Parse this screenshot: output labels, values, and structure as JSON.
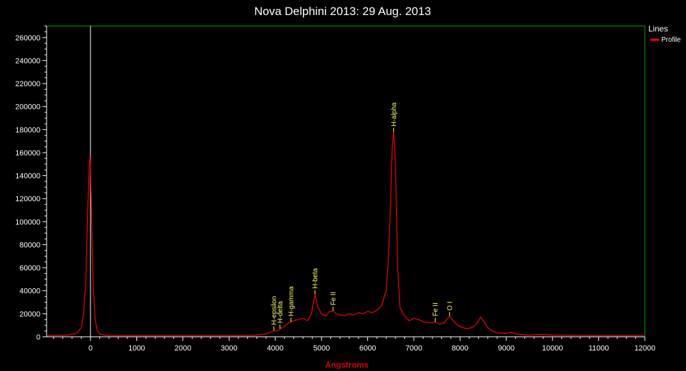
{
  "chart_data": {
    "type": "line",
    "title": "Nova Delphini 2013: 29 Aug. 2013",
    "xlabel": "Angstroms",
    "ylabel": "",
    "xlim": [
      -950,
      12000
    ],
    "ylim": [
      0,
      270000
    ],
    "x_ticks": [
      0,
      1000,
      2000,
      3000,
      4000,
      5000,
      6000,
      7000,
      8000,
      9000,
      10000,
      11000,
      12000
    ],
    "x_tick_labels": [
      "0",
      "1000",
      "2000",
      "3000",
      "4000",
      "5000",
      "6000",
      "7000",
      "8000",
      "9000",
      "10000",
      "11000",
      "12000"
    ],
    "y_ticks": [
      0,
      20000,
      40000,
      60000,
      80000,
      100000,
      120000,
      140000,
      160000,
      180000,
      200000,
      220000,
      240000,
      260000
    ],
    "y_tick_labels": [
      "0",
      "20000",
      "40000",
      "60000",
      "80000",
      "100000",
      "120000",
      "140000",
      "160000",
      "180000",
      "200000",
      "220000",
      "240000",
      "260000"
    ],
    "grid": false,
    "legend": {
      "title": "Lines",
      "position": "top-right",
      "entries": [
        "Profile"
      ]
    },
    "colors": {
      "series": "#ff0000",
      "frame": "#00aa00",
      "zero_marker": "#ffffff",
      "annotation": "#ffff66",
      "xlabel": "#e00000"
    },
    "zero_marker_x": 0,
    "series": [
      {
        "name": "Profile",
        "x": [
          -950,
          -500,
          -300,
          -200,
          -150,
          -100,
          -60,
          -30,
          -10,
          0,
          10,
          30,
          60,
          100,
          150,
          200,
          300,
          500,
          1000,
          2000,
          3000,
          3500,
          3800,
          3900,
          3970,
          4050,
          4102,
          4200,
          4250,
          4340,
          4400,
          4500,
          4600,
          4700,
          4780,
          4861,
          4920,
          5000,
          5100,
          5169,
          5250,
          5316,
          5400,
          5500,
          5600,
          5700,
          5800,
          5900,
          6000,
          6100,
          6200,
          6300,
          6400,
          6450,
          6500,
          6530,
          6563,
          6600,
          6650,
          6700,
          6800,
          6900,
          7000,
          7100,
          7200,
          7300,
          7400,
          7462,
          7550,
          7650,
          7774,
          7850,
          7950,
          8050,
          8150,
          8250,
          8300,
          8350,
          8446,
          8500,
          8600,
          8700,
          8800,
          9000,
          9100,
          9200,
          9500,
          9700,
          10000,
          11000,
          12000
        ],
        "y": [
          1000,
          1500,
          3000,
          8000,
          20000,
          50000,
          110000,
          145000,
          157000,
          150000,
          130000,
          90000,
          45000,
          15000,
          5000,
          2500,
          1500,
          1000,
          1000,
          1000,
          1000,
          1200,
          2500,
          4000,
          5500,
          5000,
          7000,
          9000,
          11000,
          13000,
          14000,
          15000,
          16000,
          14000,
          20000,
          37000,
          26000,
          20000,
          18000,
          22000,
          22500,
          20000,
          19000,
          18500,
          20000,
          19000,
          21000,
          20000,
          22000,
          21000,
          23000,
          27000,
          40000,
          70000,
          120000,
          165000,
          178000,
          150000,
          60000,
          25000,
          18000,
          14000,
          16000,
          15000,
          13000,
          12500,
          12000,
          13000,
          11000,
          12000,
          18000,
          14000,
          10000,
          8000,
          7000,
          8000,
          9000,
          11000,
          17000,
          14000,
          8000,
          5000,
          3500,
          3000,
          4000,
          2500,
          1500,
          2000,
          1500,
          1000,
          1000
        ]
      }
    ],
    "annotations": [
      {
        "label": "H-epsilon",
        "x": 3970,
        "y": 5500
      },
      {
        "label": "H-delta",
        "x": 4102,
        "y": 7000
      },
      {
        "label": "H-gamma",
        "x": 4340,
        "y": 13000
      },
      {
        "label": "H-beta",
        "x": 4861,
        "y": 37000
      },
      {
        "label": "Fe II",
        "x": 5250,
        "y": 22500
      },
      {
        "label": "H-alpha",
        "x": 6563,
        "y": 178000
      },
      {
        "label": "Fe II",
        "x": 7462,
        "y": 13000
      },
      {
        "label": "O I",
        "x": 7774,
        "y": 18000
      }
    ]
  }
}
